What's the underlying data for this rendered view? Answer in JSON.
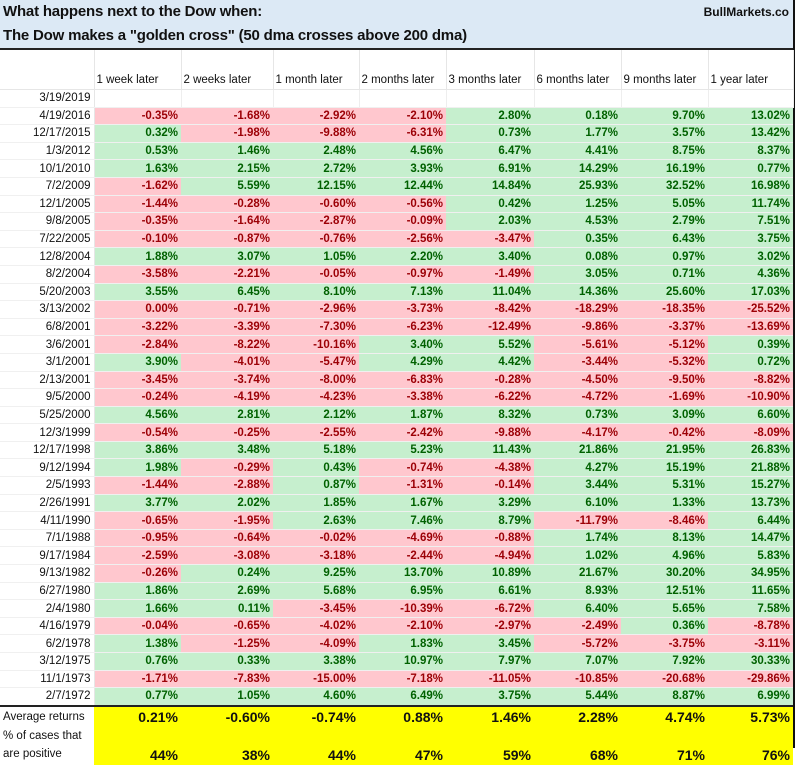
{
  "title": {
    "line1": "What happens next to the Dow when:",
    "line2": "The Dow makes a \"golden cross\" (50 dma crosses above 200 dma)",
    "brand": "BullMarkets.co"
  },
  "columns": [
    "1 week later",
    "2 weeks later",
    "1 month later",
    "2 months later",
    "3 months later",
    "6 months later",
    "9 months later",
    "1 year later"
  ],
  "colors": {
    "positive_bg": "#c6efce",
    "positive_text": "#006100",
    "negative_bg": "#ffc7ce",
    "negative_text": "#9c0006",
    "summary_bg": "#ffff00",
    "title_bg": "#dce9f5"
  },
  "rows": [
    {
      "date": "3/19/2019",
      "values": [
        "",
        "",
        "",
        "",
        "",
        "",
        "",
        ""
      ]
    },
    {
      "date": "4/19/2016",
      "values": [
        "-0.35%",
        "-1.68%",
        "-2.92%",
        "-2.10%",
        "2.80%",
        "0.18%",
        "9.70%",
        "13.02%"
      ]
    },
    {
      "date": "12/17/2015",
      "values": [
        "0.32%",
        "-1.98%",
        "-9.88%",
        "-6.31%",
        "0.73%",
        "1.77%",
        "3.57%",
        "13.42%"
      ]
    },
    {
      "date": "1/3/2012",
      "values": [
        "0.53%",
        "1.46%",
        "2.48%",
        "4.56%",
        "6.47%",
        "4.41%",
        "8.75%",
        "8.37%"
      ]
    },
    {
      "date": "10/1/2010",
      "values": [
        "1.63%",
        "2.15%",
        "2.72%",
        "3.93%",
        "6.91%",
        "14.29%",
        "16.19%",
        "0.77%"
      ]
    },
    {
      "date": "7/2/2009",
      "values": [
        "-1.62%",
        "5.59%",
        "12.15%",
        "12.44%",
        "14.84%",
        "25.93%",
        "32.52%",
        "16.98%"
      ]
    },
    {
      "date": "12/1/2005",
      "values": [
        "-1.44%",
        "-0.28%",
        "-0.60%",
        "-0.56%",
        "0.42%",
        "1.25%",
        "5.05%",
        "11.74%"
      ]
    },
    {
      "date": "9/8/2005",
      "values": [
        "-0.35%",
        "-1.64%",
        "-2.87%",
        "-0.09%",
        "2.03%",
        "4.53%",
        "2.79%",
        "7.51%"
      ]
    },
    {
      "date": "7/22/2005",
      "values": [
        "-0.10%",
        "-0.87%",
        "-0.76%",
        "-2.56%",
        "-3.47%",
        "0.35%",
        "6.43%",
        "3.75%"
      ]
    },
    {
      "date": "12/8/2004",
      "values": [
        "1.88%",
        "3.07%",
        "1.05%",
        "2.20%",
        "3.40%",
        "0.08%",
        "0.97%",
        "3.02%"
      ]
    },
    {
      "date": "8/2/2004",
      "values": [
        "-3.58%",
        "-2.21%",
        "-0.05%",
        "-0.97%",
        "-1.49%",
        "3.05%",
        "0.71%",
        "4.36%"
      ]
    },
    {
      "date": "5/20/2003",
      "values": [
        "3.55%",
        "6.45%",
        "8.10%",
        "7.13%",
        "11.04%",
        "14.36%",
        "25.60%",
        "17.03%"
      ]
    },
    {
      "date": "3/13/2002",
      "values": [
        "0.00%",
        "-0.71%",
        "-2.96%",
        "-3.73%",
        "-8.42%",
        "-18.29%",
        "-18.35%",
        "-25.52%"
      ]
    },
    {
      "date": "6/8/2001",
      "values": [
        "-3.22%",
        "-3.39%",
        "-7.30%",
        "-6.23%",
        "-12.49%",
        "-9.86%",
        "-3.37%",
        "-13.69%"
      ]
    },
    {
      "date": "3/6/2001",
      "values": [
        "-2.84%",
        "-8.22%",
        "-10.16%",
        "3.40%",
        "5.52%",
        "-5.61%",
        "-5.12%",
        "0.39%"
      ]
    },
    {
      "date": "3/1/2001",
      "values": [
        "3.90%",
        "-4.01%",
        "-5.47%",
        "4.29%",
        "4.42%",
        "-3.44%",
        "-5.32%",
        "0.72%"
      ]
    },
    {
      "date": "2/13/2001",
      "values": [
        "-3.45%",
        "-3.74%",
        "-8.00%",
        "-6.83%",
        "-0.28%",
        "-4.50%",
        "-9.50%",
        "-8.82%"
      ]
    },
    {
      "date": "9/5/2000",
      "values": [
        "-0.24%",
        "-4.19%",
        "-4.23%",
        "-3.38%",
        "-6.22%",
        "-4.72%",
        "-1.69%",
        "-10.90%"
      ]
    },
    {
      "date": "5/25/2000",
      "values": [
        "4.56%",
        "2.81%",
        "2.12%",
        "1.87%",
        "8.32%",
        "0.73%",
        "3.09%",
        "6.60%"
      ]
    },
    {
      "date": "12/3/1999",
      "values": [
        "-0.54%",
        "-0.25%",
        "-2.55%",
        "-2.42%",
        "-9.88%",
        "-4.17%",
        "-0.42%",
        "-8.09%"
      ]
    },
    {
      "date": "12/17/1998",
      "values": [
        "3.86%",
        "3.48%",
        "5.18%",
        "5.23%",
        "11.43%",
        "21.86%",
        "21.95%",
        "26.83%"
      ]
    },
    {
      "date": "9/12/1994",
      "values": [
        "1.98%",
        "-0.29%",
        "0.43%",
        "-0.74%",
        "-4.38%",
        "4.27%",
        "15.19%",
        "21.88%"
      ]
    },
    {
      "date": "2/5/1993",
      "values": [
        "-1.44%",
        "-2.88%",
        "0.87%",
        "-1.31%",
        "-0.14%",
        "3.44%",
        "5.31%",
        "15.27%"
      ]
    },
    {
      "date": "2/26/1991",
      "values": [
        "3.77%",
        "2.02%",
        "1.85%",
        "1.67%",
        "3.29%",
        "6.10%",
        "1.33%",
        "13.73%"
      ]
    },
    {
      "date": "4/11/1990",
      "values": [
        "-0.65%",
        "-1.95%",
        "2.63%",
        "7.46%",
        "8.79%",
        "-11.79%",
        "-8.46%",
        "6.44%"
      ]
    },
    {
      "date": "7/1/1988",
      "values": [
        "-0.95%",
        "-0.64%",
        "-0.02%",
        "-4.69%",
        "-0.88%",
        "1.74%",
        "8.13%",
        "14.47%"
      ]
    },
    {
      "date": "9/17/1984",
      "values": [
        "-2.59%",
        "-3.08%",
        "-3.18%",
        "-2.44%",
        "-4.94%",
        "1.02%",
        "4.96%",
        "5.83%"
      ]
    },
    {
      "date": "9/13/1982",
      "values": [
        "-0.26%",
        "0.24%",
        "9.25%",
        "13.70%",
        "10.89%",
        "21.67%",
        "30.20%",
        "34.95%"
      ]
    },
    {
      "date": "6/27/1980",
      "values": [
        "1.86%",
        "2.69%",
        "5.68%",
        "6.95%",
        "6.61%",
        "8.93%",
        "12.51%",
        "11.65%"
      ]
    },
    {
      "date": "2/4/1980",
      "values": [
        "1.66%",
        "0.11%",
        "-3.45%",
        "-10.39%",
        "-6.72%",
        "6.40%",
        "5.65%",
        "7.58%"
      ]
    },
    {
      "date": "4/16/1979",
      "values": [
        "-0.04%",
        "-0.65%",
        "-4.02%",
        "-2.10%",
        "-2.97%",
        "-2.49%",
        "0.36%",
        "-8.78%"
      ]
    },
    {
      "date": "6/2/1978",
      "values": [
        "1.38%",
        "-1.25%",
        "-4.09%",
        "1.83%",
        "3.45%",
        "-5.72%",
        "-3.75%",
        "-3.11%"
      ]
    },
    {
      "date": "3/12/1975",
      "values": [
        "0.76%",
        "0.33%",
        "3.38%",
        "10.97%",
        "7.97%",
        "7.07%",
        "7.92%",
        "30.33%"
      ]
    },
    {
      "date": "11/1/1973",
      "values": [
        "-1.71%",
        "-7.83%",
        "-15.00%",
        "-7.18%",
        "-11.05%",
        "-10.85%",
        "-20.68%",
        "-29.86%"
      ]
    },
    {
      "date": "2/7/1972",
      "values": [
        "0.77%",
        "1.05%",
        "4.60%",
        "6.49%",
        "3.75%",
        "5.44%",
        "8.87%",
        "6.99%"
      ]
    }
  ],
  "summary": {
    "avg_label": "Average returns",
    "avg_values": [
      "0.21%",
      "-0.60%",
      "-0.74%",
      "0.88%",
      "1.46%",
      "2.28%",
      "4.74%",
      "5.73%"
    ],
    "pct_label_line1": "% of cases that",
    "pct_label_line2": "are positive",
    "pct_values": [
      "44%",
      "38%",
      "44%",
      "47%",
      "59%",
      "68%",
      "71%",
      "76%"
    ]
  }
}
